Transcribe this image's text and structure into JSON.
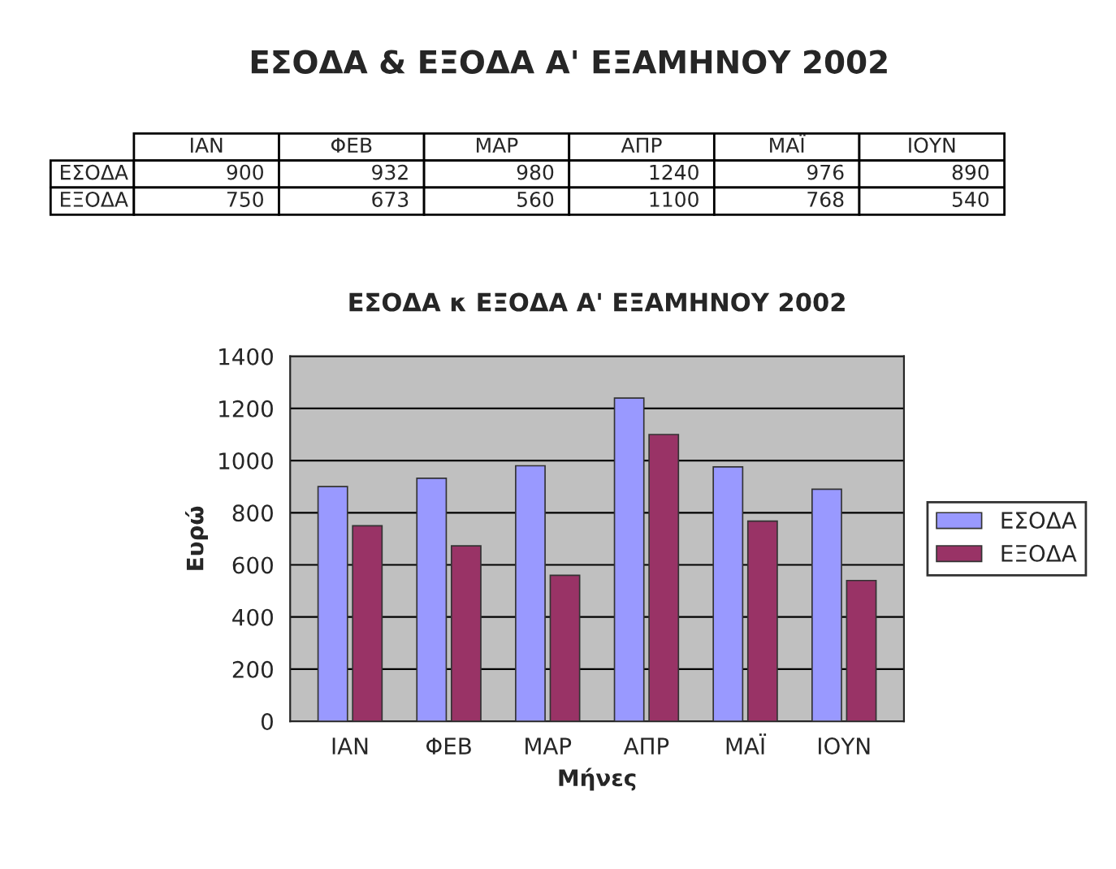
{
  "chart_data": [
    {
      "type": "other",
      "title": "ΕΣΟΔΑ & ΕΞΟΔΑ Α' ΕΞΑΜΗΝΟΥ 2002",
      "categories": [
        "ΙΑΝ",
        "ΦΕΒ",
        "ΜΑΡ",
        "ΑΠΡ",
        "ΜΑΪ",
        "ΙΟΥΝ"
      ],
      "series": [
        {
          "name": "ΕΣΟΔΑ",
          "values": [
            900,
            932,
            980,
            1240,
            976,
            890
          ]
        },
        {
          "name": "ΕΞΟΔΑ",
          "values": [
            750,
            673,
            560,
            1100,
            768,
            540
          ]
        }
      ],
      "data_labels": true
    },
    {
      "type": "bar",
      "title": "ΕΣΟΔΑ κ ΕΞΟΔΑ Α' ΕΞΑΜΗΝΟΥ 2002",
      "xlabel": "Μήνες",
      "ylabel": "Ευρώ",
      "categories": [
        "ΙΑΝ",
        "ΦΕΒ",
        "ΜΑΡ",
        "ΑΠΡ",
        "ΜΑΪ",
        "ΙΟΥΝ"
      ],
      "series": [
        {
          "name": "ΕΣΟΔΑ",
          "color": "#9999ff",
          "values": [
            900,
            932,
            980,
            1240,
            976,
            890
          ]
        },
        {
          "name": "ΕΞΟΔΑ",
          "color": "#993366",
          "values": [
            750,
            673,
            560,
            1100,
            768,
            540
          ]
        }
      ],
      "ylim": [
        0,
        1400
      ],
      "yticks": [
        0,
        200,
        400,
        600,
        800,
        1000,
        1200,
        1400
      ],
      "grid": "y",
      "legend": "right"
    }
  ]
}
